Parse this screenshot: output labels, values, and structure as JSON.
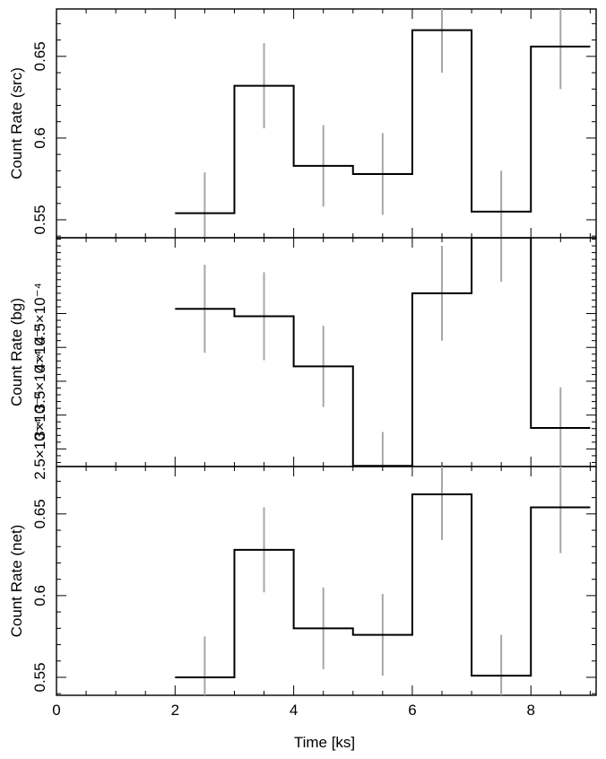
{
  "chart_data": {
    "type": "line",
    "xlabel": "Time [ks]",
    "x_ticks": [
      "0",
      "2",
      "4",
      "6",
      "8"
    ],
    "xlim": [
      0,
      9.1
    ],
    "bin_edges": [
      2,
      3,
      4,
      5,
      6,
      7,
      8,
      9
    ],
    "bin_centers": [
      2.5,
      3.5,
      4.5,
      5.5,
      6.5,
      7.5,
      8.5
    ],
    "panels": [
      {
        "ylabel": "Count Rate (src)",
        "ylim": [
          0.539,
          0.679
        ],
        "y_ticks": [
          0.55,
          0.6,
          0.65
        ],
        "y_tick_labels": [
          "0.55",
          "0.6",
          "0.65"
        ],
        "values": [
          0.554,
          0.632,
          0.583,
          0.578,
          0.666,
          0.555,
          0.656
        ],
        "errors": [
          0.025,
          0.026,
          0.025,
          0.025,
          0.026,
          0.025,
          0.026
        ]
      },
      {
        "ylabel": "Count Rate (bg)",
        "ylim": [
          0.000224,
          0.000562
        ],
        "y_ticks": [
          0.00025,
          0.0003,
          0.00035,
          0.0004,
          0.00045
        ],
        "y_tick_labels": [
          "2.5×10⁻⁴",
          "3×10⁻⁴",
          "3.5×10⁻⁴",
          "4×10⁻⁴",
          "4.5×10⁻⁴"
        ],
        "values": [
          0.000457,
          0.000446,
          0.000372,
          0.000225,
          0.00048,
          0.000562,
          0.000281
        ],
        "errors": [
          6.5e-05,
          6.5e-05,
          6e-05,
          5e-05,
          7e-05,
          6.5e-05,
          6e-05
        ]
      },
      {
        "ylabel": "Count Rate (net)",
        "ylim": [
          0.539,
          0.679
        ],
        "y_ticks": [
          0.55,
          0.6,
          0.65
        ],
        "y_tick_labels": [
          "0.55",
          "0.6",
          "0.65"
        ],
        "values": [
          0.55,
          0.628,
          0.58,
          0.576,
          0.662,
          0.551,
          0.654
        ],
        "errors": [
          0.025,
          0.026,
          0.025,
          0.025,
          0.028,
          0.025,
          0.028
        ]
      }
    ]
  }
}
